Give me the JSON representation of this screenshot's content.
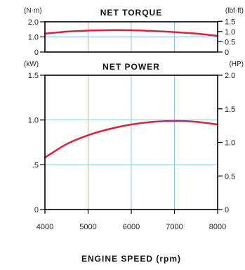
{
  "colors": {
    "line": "#e0203a",
    "grid": "#8ec6e6",
    "frame": "#000000"
  },
  "x_axis": {
    "title": "ENGINE SPEED (rpm)",
    "ticks": [
      4000,
      5000,
      6000,
      7000,
      8000
    ],
    "tick_labels": [
      "4000",
      "5000",
      "6000",
      "7000",
      "8000"
    ]
  },
  "chart_data": [
    {
      "type": "line",
      "title": "NET TORQUE",
      "left_unit": "(N·m)",
      "right_unit": "(lbf·ft)",
      "x": [
        4000,
        4500,
        5000,
        5500,
        6000,
        6500,
        7000,
        7500,
        8000
      ],
      "series": [
        {
          "values": [
            1.22,
            1.35,
            1.42,
            1.45,
            1.44,
            1.39,
            1.32,
            1.22,
            1.07
          ]
        }
      ],
      "xlim": [
        4000,
        8000
      ],
      "ylim_left": [
        0,
        2.0
      ],
      "left_ticks": [
        0,
        1.0,
        2.0
      ],
      "left_tick_labels": [
        "0",
        "1.0",
        "2.0"
      ],
      "ylim_right_lbfft": [
        0,
        1.475
      ],
      "right_ticks": [
        0,
        0.5,
        1.0,
        1.5
      ],
      "right_tick_labels": [
        "0",
        "0.5",
        "1.0",
        "1.5"
      ],
      "grid": true
    },
    {
      "type": "line",
      "title": "NET POWER",
      "left_unit": "(kW)",
      "right_unit": "(HP)",
      "x": [
        4000,
        4500,
        5000,
        5500,
        6000,
        6500,
        7000,
        7500,
        8000
      ],
      "series": [
        {
          "values": [
            0.58,
            0.73,
            0.83,
            0.9,
            0.95,
            0.98,
            0.99,
            0.98,
            0.95
          ]
        }
      ],
      "xlim": [
        4000,
        8000
      ],
      "ylim_left": [
        0,
        1.5
      ],
      "left_ticks": [
        0,
        0.5,
        1.0,
        1.5
      ],
      "left_tick_labels": [
        "0",
        ".5",
        "1.0",
        "1.5"
      ],
      "ylim_right_hp": [
        0,
        2.0
      ],
      "right_ticks": [
        0,
        0.5,
        1.0,
        1.5,
        2.0
      ],
      "right_tick_labels": [
        "0",
        "0.5",
        "1.0",
        "1.5",
        "2.0"
      ],
      "grid": true
    }
  ]
}
